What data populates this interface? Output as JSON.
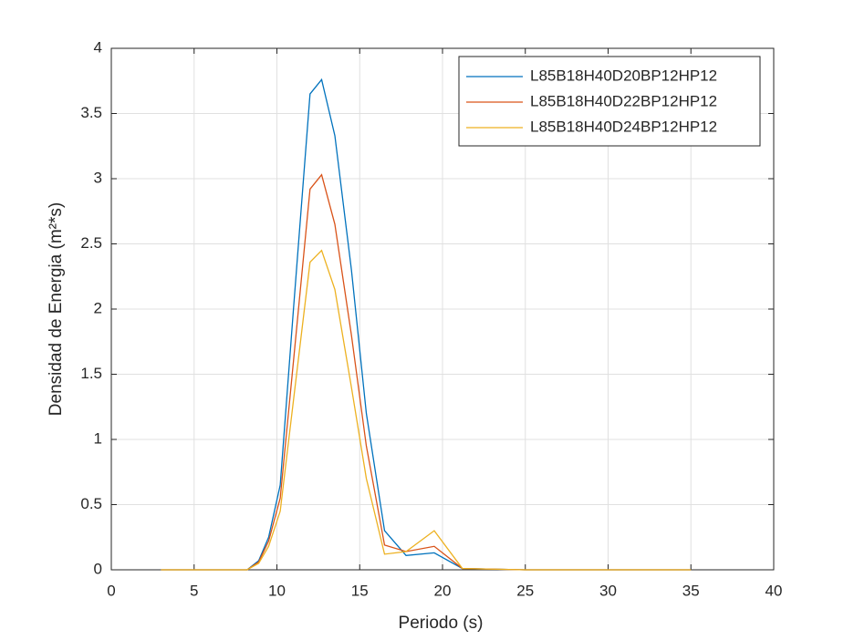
{
  "chart_data": {
    "type": "line",
    "xlabel": "Periodo (s)",
    "ylabel": "Densidad de Energia (m²*s)",
    "x": [
      3,
      5,
      7,
      8.2,
      8.9,
      9.5,
      10.2,
      11,
      12,
      12.7,
      13.5,
      14.5,
      15.4,
      16.5,
      17.8,
      19.5,
      21.2,
      25,
      30,
      35
    ],
    "series": [
      {
        "name": "L85B18H40D20BP12HP12",
        "color": "#0072bd",
        "values": [
          0,
          0,
          0,
          0,
          0.07,
          0.25,
          0.65,
          2.0,
          3.65,
          3.76,
          3.33,
          2.3,
          1.2,
          0.3,
          0.11,
          0.13,
          0.01,
          0,
          0,
          0
        ]
      },
      {
        "name": "L85B18H40D22BP12HP12",
        "color": "#d95319",
        "values": [
          0,
          0,
          0,
          0,
          0.06,
          0.22,
          0.55,
          1.6,
          2.92,
          3.03,
          2.65,
          1.8,
          0.95,
          0.19,
          0.14,
          0.18,
          0.01,
          0,
          0,
          0
        ]
      },
      {
        "name": "L85B18H40D24BP12HP12",
        "color": "#edb120",
        "values": [
          0,
          0,
          0,
          0,
          0.05,
          0.18,
          0.45,
          1.3,
          2.36,
          2.45,
          2.15,
          1.4,
          0.7,
          0.12,
          0.14,
          0.3,
          0.01,
          0,
          0,
          0
        ]
      }
    ],
    "xlim": [
      0,
      40
    ],
    "xticks": [
      0,
      5,
      10,
      15,
      20,
      25,
      30,
      35,
      40
    ],
    "ylim": [
      0,
      4
    ],
    "yticks": [
      0,
      0.5,
      1,
      1.5,
      2,
      2.5,
      3,
      3.5,
      4
    ],
    "grid": true,
    "legend": "top-right"
  }
}
